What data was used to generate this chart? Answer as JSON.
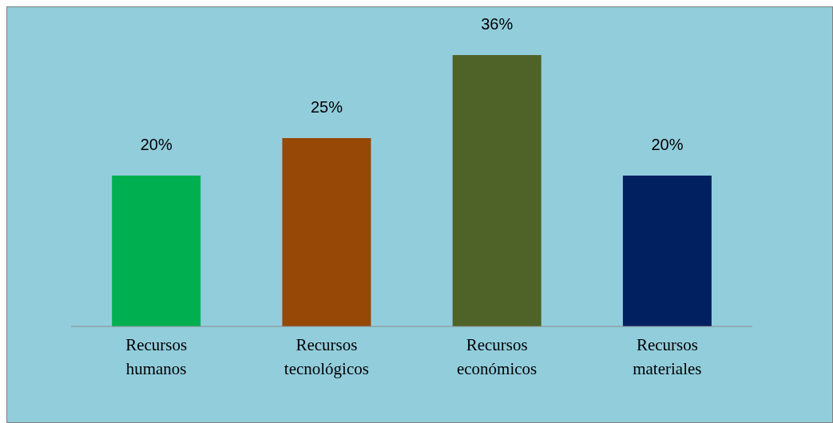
{
  "chart_data": {
    "type": "bar",
    "categories": [
      "Recursos humanos",
      "Recursos tecnológicos",
      "Recursos económicos",
      "Recursos materiales"
    ],
    "values": [
      20,
      25,
      36,
      20
    ],
    "colors": [
      "#00b050",
      "#974706",
      "#4f6228",
      "#002060"
    ],
    "value_labels": [
      "20%",
      "25%",
      "36%",
      "20%"
    ],
    "grid": false,
    "legend": false
  }
}
